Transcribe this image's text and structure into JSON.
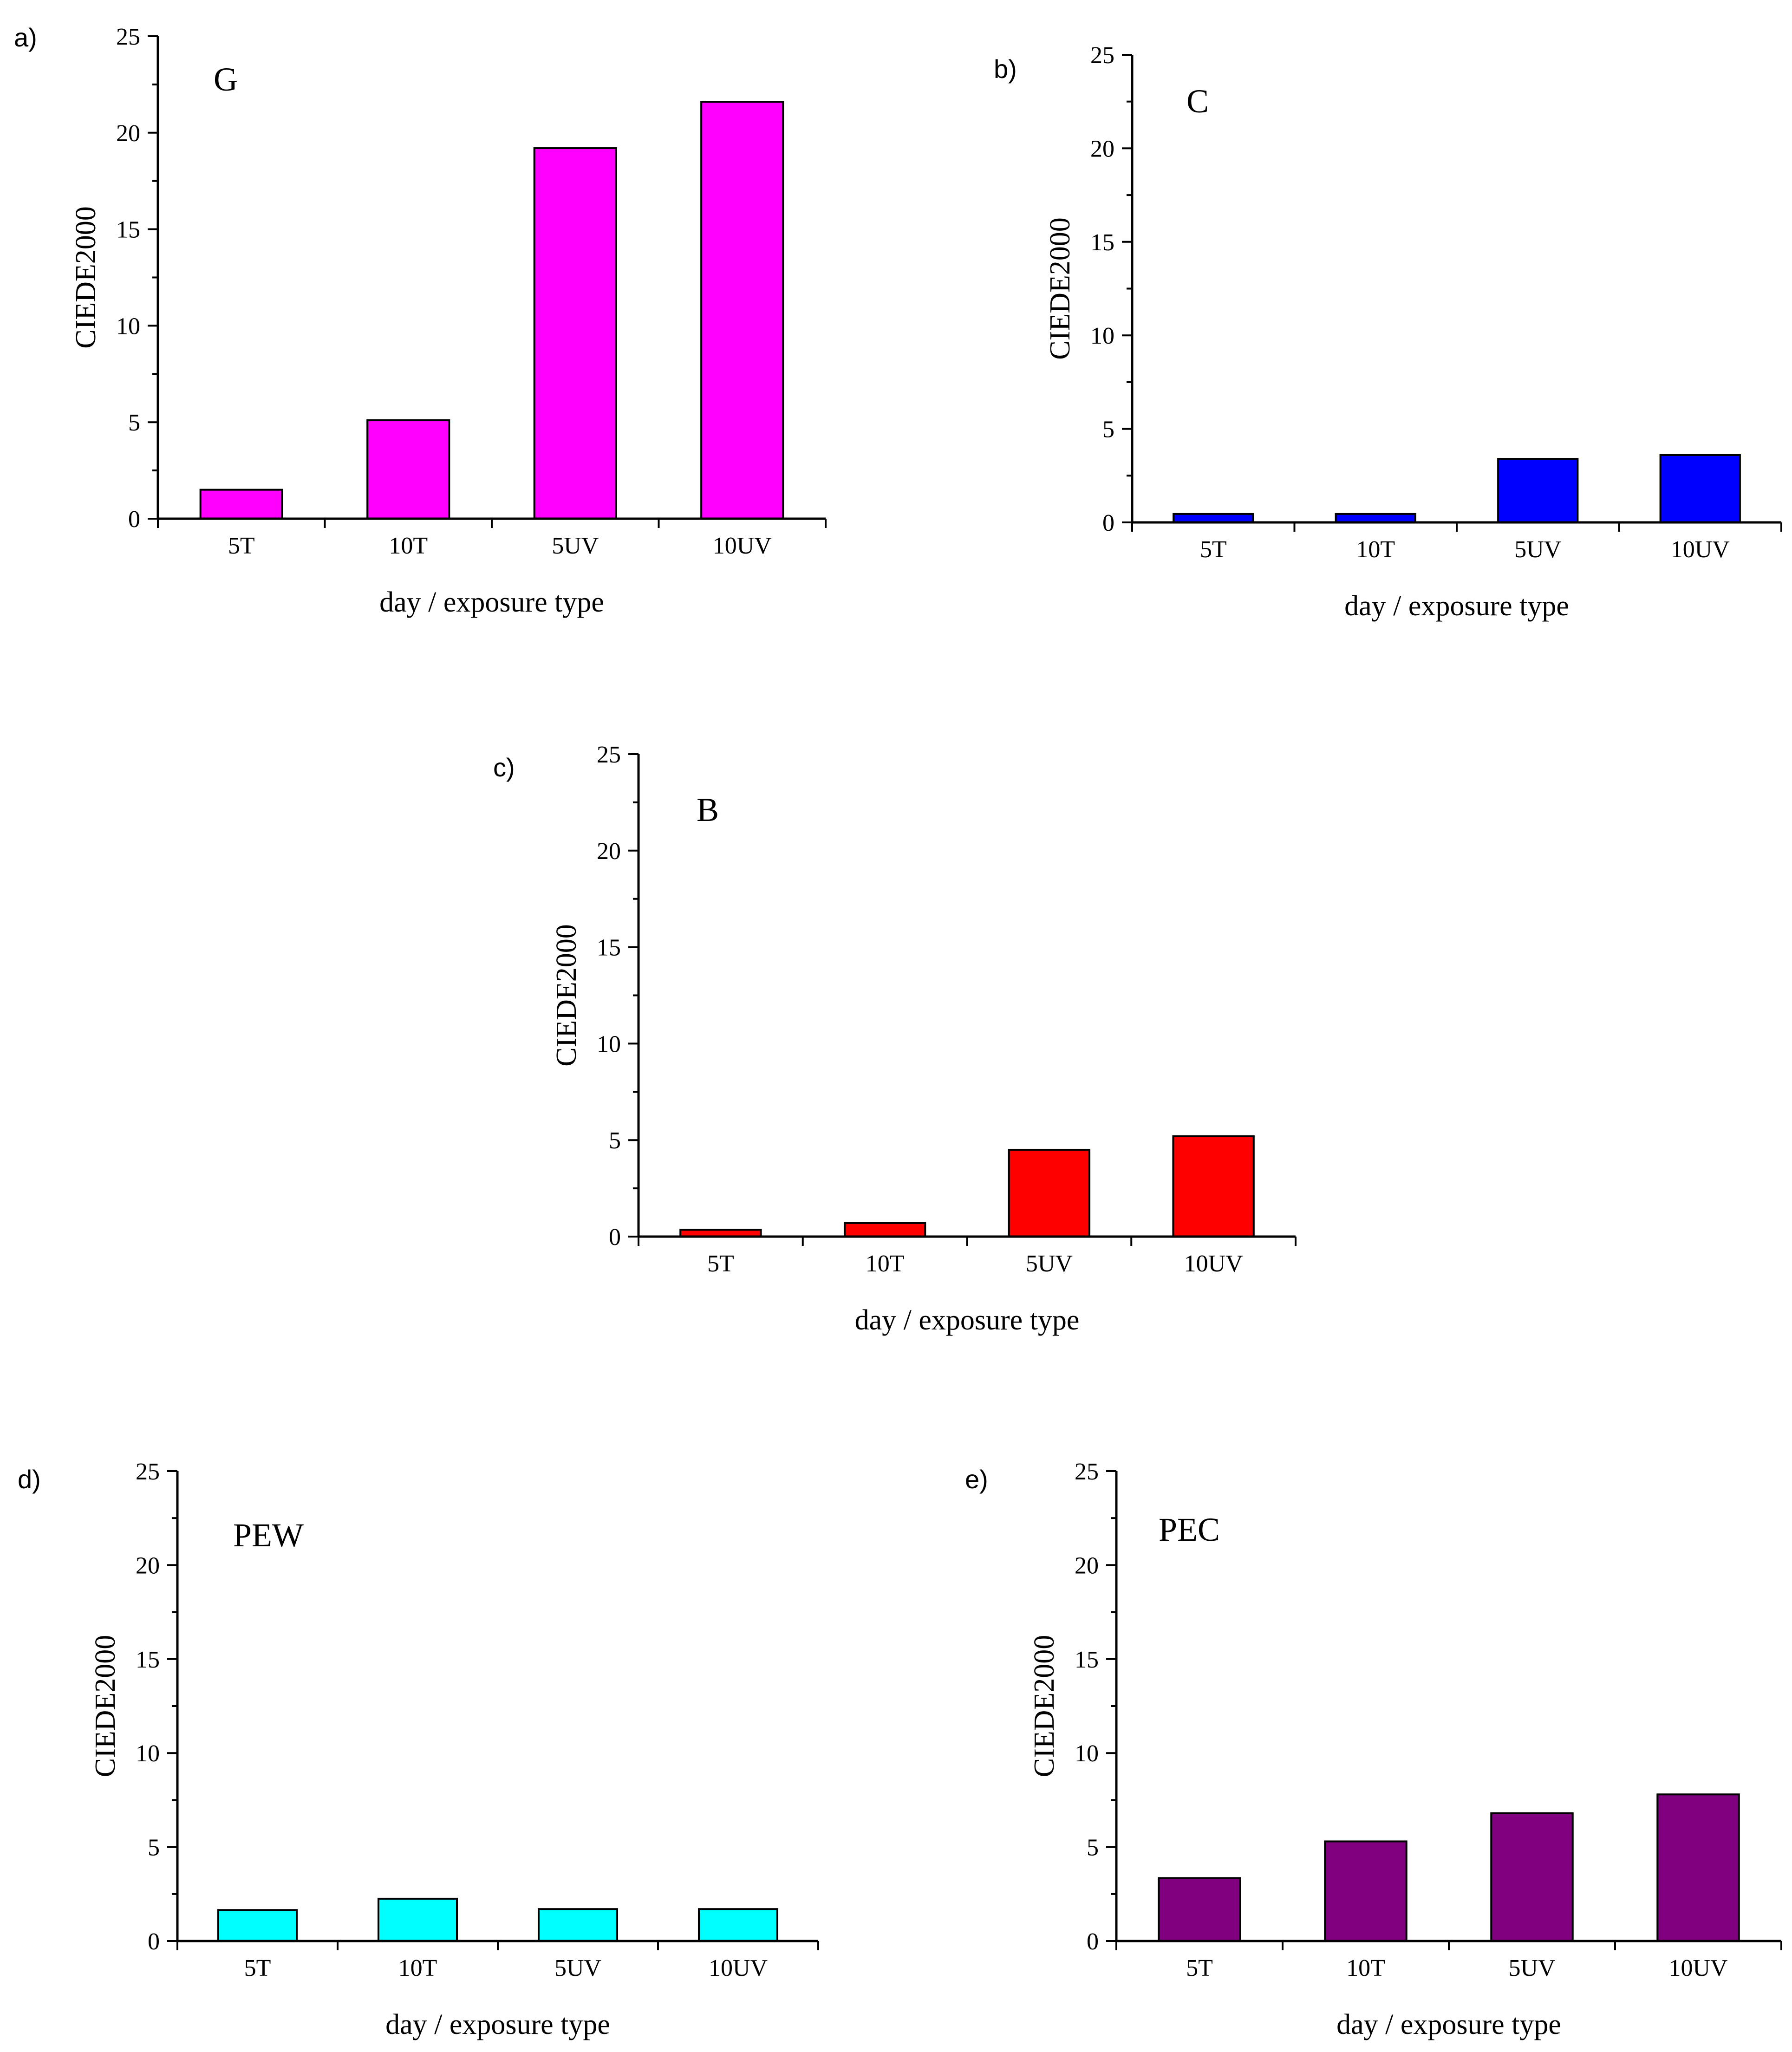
{
  "chart_data": [
    {
      "panel_label": "a)",
      "title": "G",
      "type": "bar",
      "categories": [
        "5T",
        "10T",
        "5UV",
        "10UV"
      ],
      "values": [
        1.5,
        5.1,
        19.2,
        21.6
      ],
      "color": "#ff00ff",
      "xlabel": "day / exposure type",
      "ylabel": "CIEDE2000",
      "ylim": [
        0,
        25
      ],
      "yticks": [
        "0",
        "5",
        "10",
        "15",
        "20",
        "25"
      ]
    },
    {
      "panel_label": "b)",
      "title": "C",
      "type": "bar",
      "categories": [
        "5T",
        "10T",
        "5UV",
        "10UV"
      ],
      "values": [
        0.45,
        0.45,
        3.4,
        3.6
      ],
      "color": "#0000ff",
      "xlabel": "day / exposure type",
      "ylabel": "CIEDE2000",
      "ylim": [
        0,
        25
      ],
      "yticks": [
        "0",
        "5",
        "10",
        "15",
        "20",
        "25"
      ]
    },
    {
      "panel_label": "c)",
      "title": "B",
      "type": "bar",
      "categories": [
        "5T",
        "10T",
        "5UV",
        "10UV"
      ],
      "values": [
        0.35,
        0.7,
        4.5,
        5.2
      ],
      "color": "#ff0000",
      "xlabel": "day / exposure type",
      "ylabel": "CIEDE2000",
      "ylim": [
        0,
        25
      ],
      "yticks": [
        "0",
        "5",
        "10",
        "15",
        "20",
        "25"
      ]
    },
    {
      "panel_label": "d)",
      "title": "PEW",
      "type": "bar",
      "categories": [
        "5T",
        "10T",
        "5UV",
        "10UV"
      ],
      "values": [
        1.65,
        2.25,
        1.7,
        1.7
      ],
      "color": "#00ffff",
      "xlabel": "day / exposure type",
      "ylabel": "CIEDE2000",
      "ylim": [
        0,
        25
      ],
      "yticks": [
        "0",
        "5",
        "10",
        "15",
        "20",
        "25"
      ]
    },
    {
      "panel_label": "e)",
      "title": "PEC",
      "type": "bar",
      "categories": [
        "5T",
        "10T",
        "5UV",
        "10UV"
      ],
      "values": [
        3.35,
        5.3,
        6.8,
        7.8
      ],
      "color": "#800080",
      "xlabel": "day / exposure type",
      "ylabel": "CIEDE2000",
      "ylim": [
        0,
        25
      ],
      "yticks": [
        "0",
        "5",
        "10",
        "15",
        "20",
        "25"
      ]
    }
  ]
}
